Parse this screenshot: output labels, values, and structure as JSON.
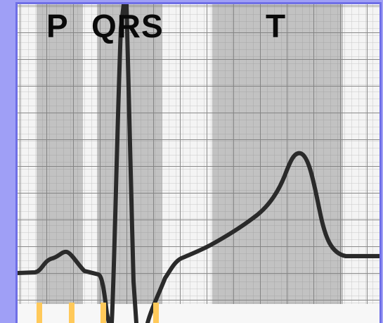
{
  "labels": {
    "p": "P",
    "qrs": "QRS",
    "t": "T"
  },
  "colors": {
    "background": "#9f9ff6",
    "frame": "#6f6fe6",
    "paper": "#f4f4f4",
    "grid_minor": "#c8c8c8",
    "grid_major": "#8a8a8a",
    "interval_shade": "#7d7d7d",
    "trace": "#2a2a2a",
    "tick_marks": "#ffc95a"
  },
  "segments": [
    "p-wave",
    "qrs-complex",
    "t-wave"
  ]
}
